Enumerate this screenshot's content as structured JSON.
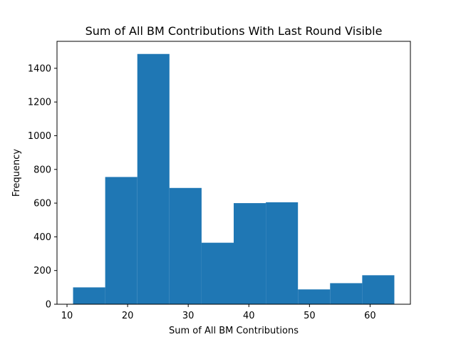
{
  "chart_data": {
    "type": "bar",
    "title": "Sum of All BM Contributions With Last Round Visible",
    "xlabel": "Sum of All BM Contributions",
    "ylabel": "Frequency",
    "bin_edges": [
      11.0,
      16.3,
      21.6,
      26.9,
      32.2,
      37.5,
      42.8,
      48.1,
      53.4,
      58.7,
      64.0
    ],
    "values": [
      100,
      755,
      1485,
      690,
      365,
      600,
      605,
      88,
      125,
      172
    ],
    "xlim": [
      8.35,
      66.65
    ],
    "ylim": [
      0,
      1560
    ],
    "xticks": [
      10,
      20,
      30,
      40,
      50,
      60
    ],
    "yticks": [
      0,
      200,
      400,
      600,
      800,
      1000,
      1200,
      1400
    ],
    "bar_color": "#1f77b4",
    "grid": false,
    "legend": "none"
  }
}
